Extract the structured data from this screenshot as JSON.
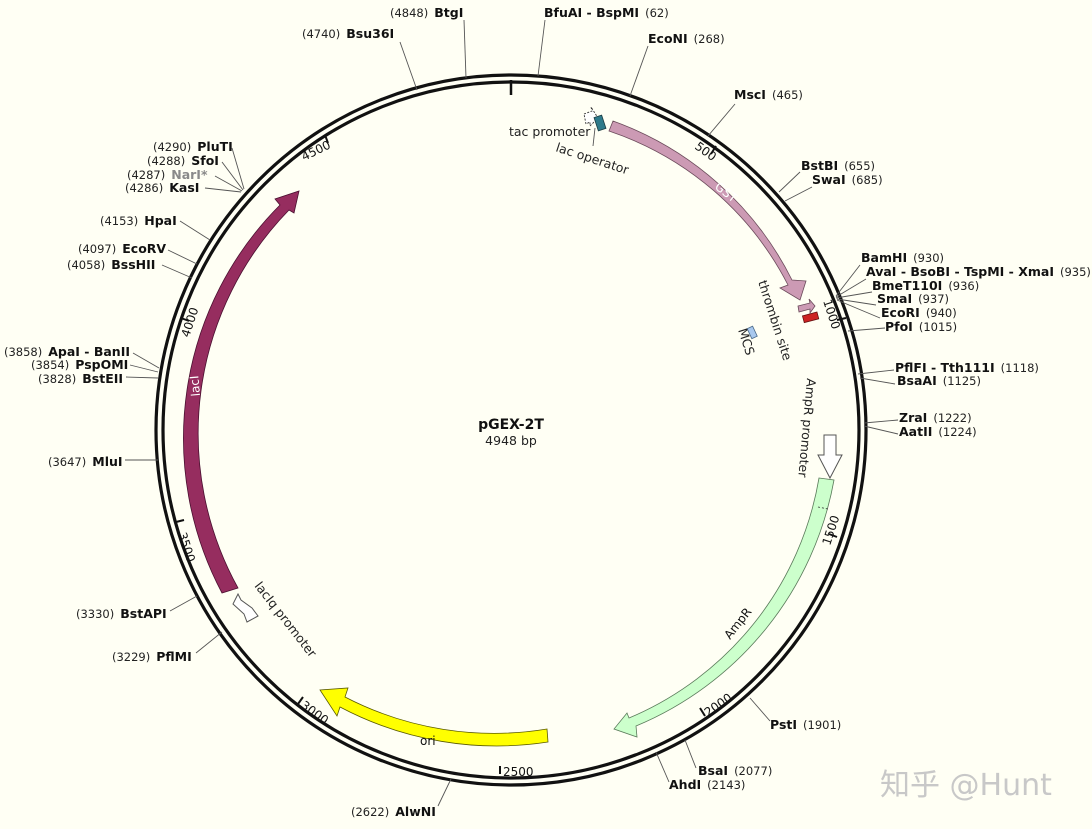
{
  "plasmid": {
    "name": "pGEX-2T",
    "length_label": "4948 bp"
  },
  "ruler": [
    "500",
    "1000",
    "1500",
    "2000",
    "2500",
    "3000",
    "3500",
    "4000",
    "4500"
  ],
  "features": {
    "gst": "GST",
    "ampr": "AmpR",
    "ori": "ori",
    "laci": "lacI",
    "tac_promoter": "tac promoter",
    "lac_operator": "lac operator",
    "thrombin_site": "thrombin site",
    "mcs": "MCS",
    "ampr_promoter": "AmpR promoter",
    "laciq_promoter": "lacIq promoter"
  },
  "colors": {
    "gst": "#cc9ab4",
    "ampr": "#ccffcc",
    "ori": "#ffff00",
    "laci": "#962d5f",
    "lac_operator": "#2e7a8a",
    "thrombin": "#cc2222",
    "mcs": "#a8c8ee",
    "background": "#fffff4"
  },
  "sites": {
    "btgi": {
      "name": "BtgI",
      "pos": "(4848)"
    },
    "bsu36i": {
      "name": "Bsu36I",
      "pos": "(4740)"
    },
    "bfuai": {
      "name": "BfuAI - BspMI",
      "pos": "(62)"
    },
    "econi": {
      "name": "EcoNI",
      "pos": "(268)"
    },
    "msci": {
      "name": "MscI",
      "pos": "(465)"
    },
    "bstbi": {
      "name": "BstBI",
      "pos": "(655)"
    },
    "swai": {
      "name": "SwaI",
      "pos": "(685)"
    },
    "bamhi": {
      "name": "BamHI",
      "pos": "(930)"
    },
    "avai": {
      "name": "AvaI - BsoBI - TspMI - XmaI",
      "pos": "(935)"
    },
    "bmet": {
      "name": "BmeT110I",
      "pos": "(936)"
    },
    "smai": {
      "name": "SmaI",
      "pos": "(937)"
    },
    "ecori": {
      "name": "EcoRI",
      "pos": "(940)"
    },
    "pfoi": {
      "name": "PfoI",
      "pos": "(1015)"
    },
    "pflfi": {
      "name": "PflFI - Tth111I",
      "pos": "(1118)"
    },
    "bsaai": {
      "name": "BsaAI",
      "pos": "(1125)"
    },
    "zrai": {
      "name": "ZraI",
      "pos": "(1222)"
    },
    "aatii": {
      "name": "AatII",
      "pos": "(1224)"
    },
    "psti": {
      "name": "PstI",
      "pos": "(1901)"
    },
    "bsai": {
      "name": "BsaI",
      "pos": "(2077)"
    },
    "ahdi": {
      "name": "AhdI",
      "pos": "(2143)"
    },
    "alwni": {
      "name": "AlwNI",
      "pos": "(2622)"
    },
    "pflmi": {
      "name": "PflMI",
      "pos": "(3229)"
    },
    "bstapi": {
      "name": "BstAPI",
      "pos": "(3330)"
    },
    "mlui": {
      "name": "MluI",
      "pos": "(3647)"
    },
    "bsteii": {
      "name": "BstEII",
      "pos": "(3828)"
    },
    "pspomi": {
      "name": "PspOMI",
      "pos": "(3854)"
    },
    "apai": {
      "name": "ApaI - BanII",
      "pos": "(3858)"
    },
    "bsshii": {
      "name": "BssHII",
      "pos": "(4058)"
    },
    "ecorv": {
      "name": "EcoRV",
      "pos": "(4097)"
    },
    "hpai": {
      "name": "HpaI",
      "pos": "(4153)"
    },
    "kasi": {
      "name": "KasI",
      "pos": "(4286)"
    },
    "nari": {
      "name": "NarI*",
      "pos": "(4287)"
    },
    "sfoi": {
      "name": "SfoI",
      "pos": "(4288)"
    },
    "pluti": {
      "name": "PluTI",
      "pos": "(4290)"
    }
  },
  "watermark": "知乎 @Hunt"
}
